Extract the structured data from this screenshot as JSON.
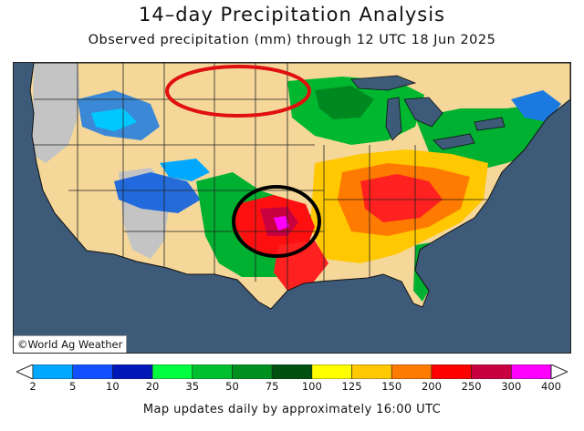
{
  "header": {
    "title": "14–day Precipitation Analysis",
    "subtitle": "Observed precipitation (mm) through 12 UTC 18 Jun 2025"
  },
  "map": {
    "credit": "©World Ag Weather",
    "colors": {
      "ocean": "#3d5a78",
      "land_dry": "#f5d79a",
      "no_data": "#c4c4c4",
      "ring_red": "#e01010",
      "ring_black": "#000000"
    },
    "annotations": [
      {
        "id": "northern-plains-ring",
        "color": "red"
      },
      {
        "id": "southern-plains-ring",
        "color": "black"
      }
    ]
  },
  "legend": {
    "labels": [
      "2",
      "5",
      "10",
      "20",
      "35",
      "50",
      "75",
      "100",
      "125",
      "150",
      "200",
      "250",
      "300",
      "400"
    ],
    "colors": [
      "#00e0ff",
      "#00a8ff",
      "#1050ff",
      "#0018b8",
      "#00ff40",
      "#00c030",
      "#009020",
      "#005010",
      "#ffff00",
      "#ffc800",
      "#ff7a00",
      "#ff0000",
      "#c80040",
      "#ff00ff",
      "#9040c0"
    ]
  },
  "footer": {
    "note": "Map updates daily by approximately 16:00 UTC"
  }
}
